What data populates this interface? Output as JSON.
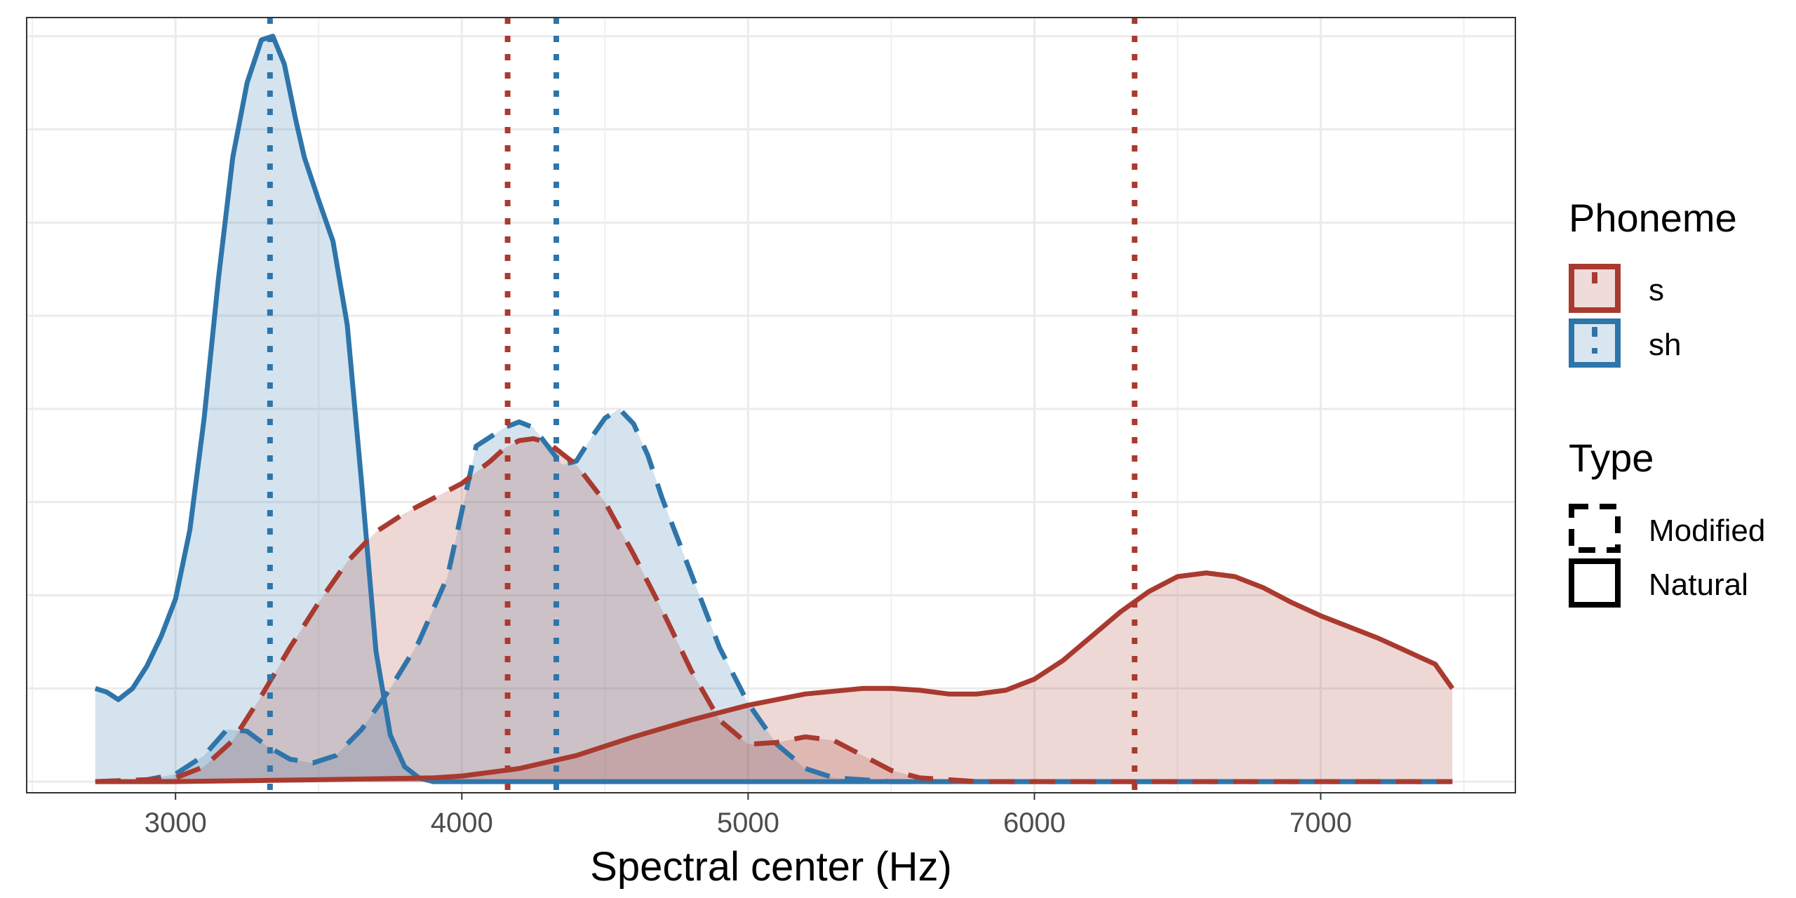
{
  "chart_data": {
    "type": "area",
    "chart_kind": "density",
    "title": "",
    "xlabel": "Spectral center (Hz)",
    "ylabel": "",
    "xlim": [
      2480,
      7680
    ],
    "ylim": [
      -0.06,
      4.1
    ],
    "x_ticks": [
      3000,
      4000,
      5000,
      6000,
      7000
    ],
    "x_tick_labels": [
      "3000",
      "4000",
      "5000",
      "6000",
      "7000"
    ],
    "y_gridlines": [
      0,
      0.5,
      1,
      1.5,
      2,
      2.5,
      3,
      3.5,
      4
    ],
    "y_tick_labels_shown": false,
    "grid": true,
    "legend_position": "right",
    "colors": {
      "s": "#a93a2f",
      "sh": "#2e75aa"
    },
    "series": [
      {
        "phoneme": "sh",
        "type": "Natural",
        "x": [
          2720,
          2760,
          2800,
          2850,
          2900,
          2950,
          3000,
          3050,
          3100,
          3150,
          3200,
          3250,
          3300,
          3340,
          3380,
          3420,
          3450,
          3500,
          3550,
          3600,
          3650,
          3700,
          3750,
          3800,
          3850,
          3900,
          4000,
          4500,
          5000,
          6000,
          7000,
          7460
        ],
        "y": [
          0.5,
          0.48,
          0.44,
          0.5,
          0.62,
          0.78,
          0.98,
          1.35,
          1.95,
          2.7,
          3.35,
          3.75,
          3.98,
          4.0,
          3.85,
          3.55,
          3.35,
          3.12,
          2.9,
          2.45,
          1.6,
          0.7,
          0.25,
          0.08,
          0.02,
          0.0,
          0.0,
          0.0,
          0.0,
          0.0,
          0.0,
          0.0
        ]
      },
      {
        "phoneme": "sh",
        "type": "Modified",
        "x": [
          2720,
          2900,
          3000,
          3100,
          3180,
          3250,
          3320,
          3400,
          3480,
          3560,
          3650,
          3750,
          3850,
          3950,
          4050,
          4150,
          4200,
          4250,
          4300,
          4350,
          4400,
          4450,
          4500,
          4550,
          4600,
          4650,
          4700,
          4800,
          4900,
          5000,
          5100,
          5200,
          5300,
          5500,
          6000,
          7000,
          7460
        ],
        "y": [
          0.0,
          0.01,
          0.04,
          0.14,
          0.28,
          0.27,
          0.19,
          0.12,
          0.1,
          0.14,
          0.28,
          0.5,
          0.75,
          1.1,
          1.8,
          1.9,
          1.93,
          1.9,
          1.8,
          1.7,
          1.72,
          1.84,
          1.95,
          2.0,
          1.92,
          1.75,
          1.52,
          1.12,
          0.72,
          0.42,
          0.2,
          0.07,
          0.02,
          0.0,
          0.0,
          0.0,
          0.0
        ]
      },
      {
        "phoneme": "s",
        "type": "Modified",
        "x": [
          2720,
          2900,
          3000,
          3100,
          3200,
          3300,
          3400,
          3500,
          3600,
          3700,
          3800,
          3900,
          4000,
          4100,
          4150,
          4200,
          4250,
          4300,
          4350,
          4400,
          4500,
          4600,
          4700,
          4800,
          4900,
          5000,
          5100,
          5200,
          5300,
          5400,
          5500,
          5600,
          5700,
          5800,
          6000,
          7000,
          7460
        ],
        "y": [
          0.0,
          0.01,
          0.02,
          0.08,
          0.22,
          0.46,
          0.72,
          0.96,
          1.18,
          1.34,
          1.44,
          1.52,
          1.6,
          1.72,
          1.79,
          1.83,
          1.84,
          1.82,
          1.76,
          1.7,
          1.5,
          1.22,
          0.92,
          0.6,
          0.33,
          0.2,
          0.21,
          0.24,
          0.22,
          0.14,
          0.06,
          0.02,
          0.01,
          0.0,
          0.0,
          0.0,
          0.0
        ]
      },
      {
        "phoneme": "s",
        "type": "Natural",
        "x": [
          2720,
          3000,
          3500,
          3900,
          4000,
          4200,
          4400,
          4600,
          4800,
          5000,
          5200,
          5400,
          5500,
          5600,
          5700,
          5800,
          5900,
          6000,
          6100,
          6200,
          6300,
          6400,
          6500,
          6600,
          6700,
          6800,
          6900,
          7000,
          7100,
          7200,
          7300,
          7400,
          7460
        ],
        "y": [
          0.0,
          0.0,
          0.01,
          0.02,
          0.03,
          0.07,
          0.14,
          0.24,
          0.33,
          0.41,
          0.47,
          0.5,
          0.5,
          0.49,
          0.47,
          0.47,
          0.49,
          0.55,
          0.65,
          0.78,
          0.91,
          1.02,
          1.1,
          1.12,
          1.1,
          1.04,
          0.96,
          0.89,
          0.83,
          0.77,
          0.7,
          0.63,
          0.5
        ]
      }
    ],
    "means": [
      {
        "phoneme": "sh",
        "type": "Natural",
        "x": 3330
      },
      {
        "phoneme": "s",
        "type": "Modified",
        "x": 4160
      },
      {
        "phoneme": "sh",
        "type": "Modified",
        "x": 4330
      },
      {
        "phoneme": "s",
        "type": "Natural",
        "x": 6350
      }
    ]
  },
  "legend": {
    "phoneme_title": "Phoneme",
    "phoneme_items": [
      {
        "label": "s",
        "color": "#a93a2f"
      },
      {
        "label": "sh",
        "color": "#2e75aa"
      }
    ],
    "type_title": "Type",
    "type_items": [
      {
        "label": "Modified",
        "linetype": "dashed"
      },
      {
        "label": "Natural",
        "linetype": "solid"
      }
    ]
  }
}
